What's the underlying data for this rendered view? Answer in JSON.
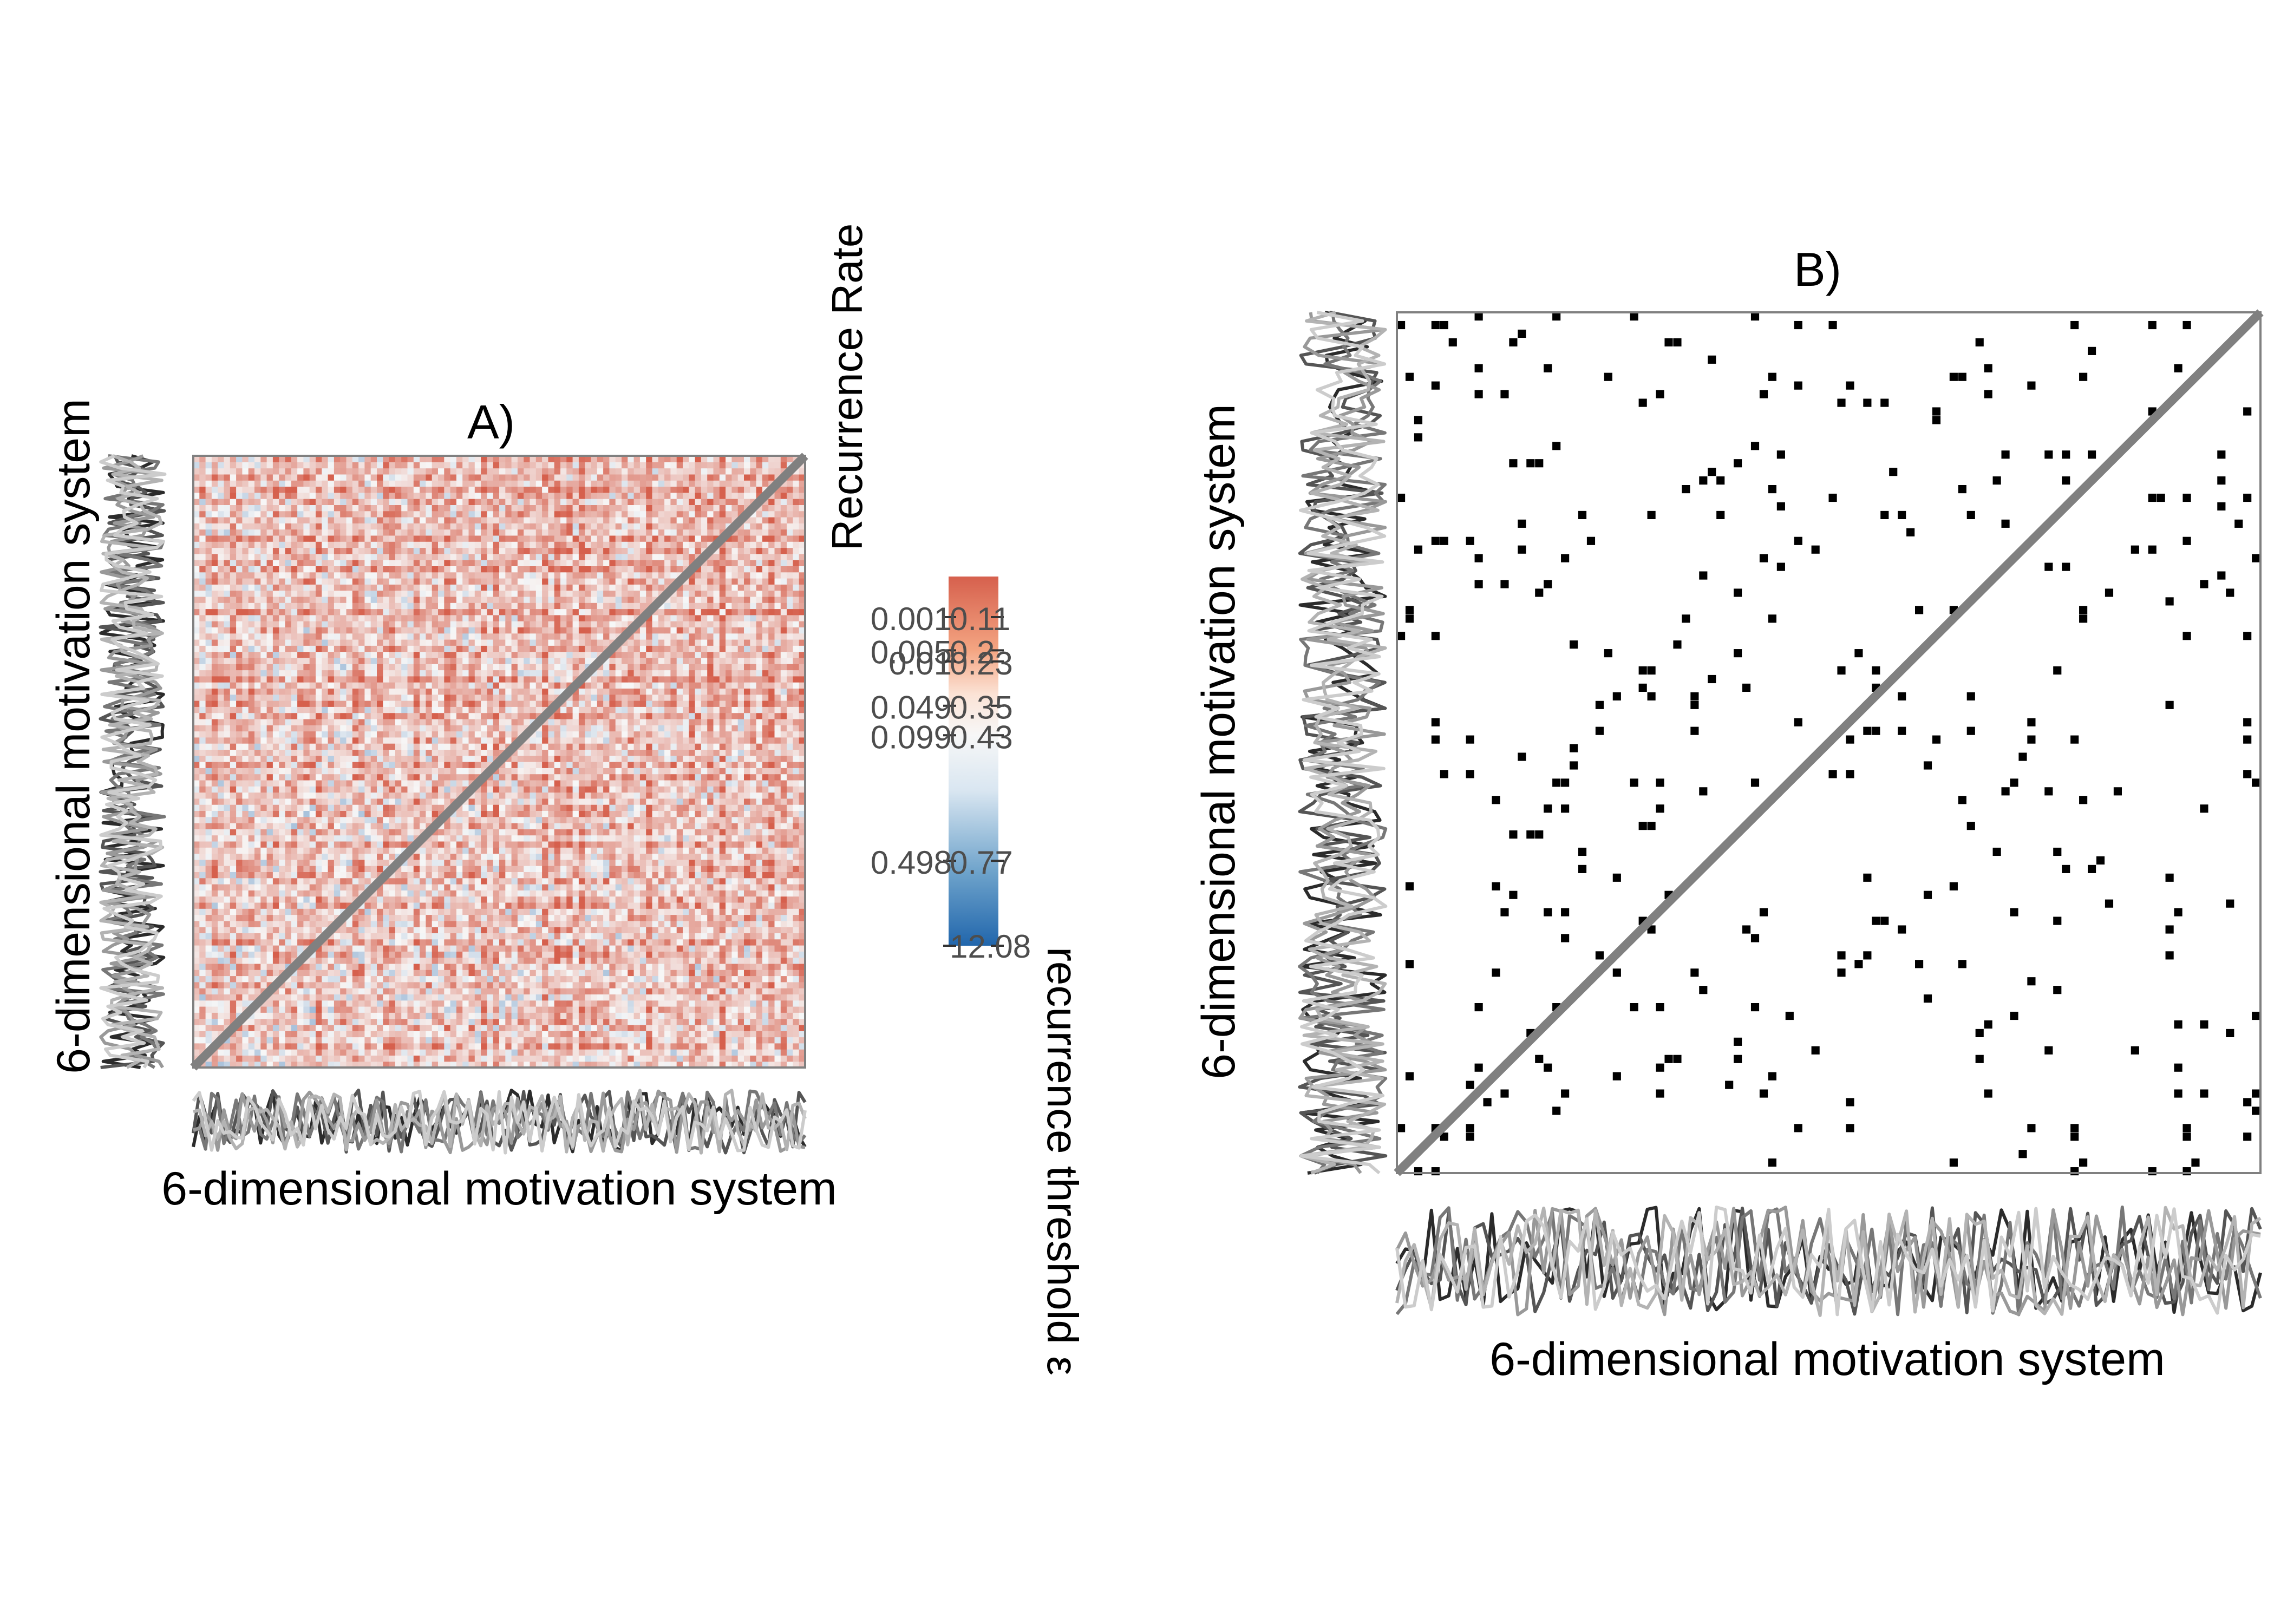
{
  "chart_data": [
    {
      "type": "heatmap",
      "panel": "A)",
      "title": "A)",
      "xlabel": "6-dimensional motivation system",
      "ylabel": "6-dimensional motivation system",
      "matrix_size": 100,
      "diagonal": "line of identity",
      "colorbar": {
        "title_top": "Recurrence Rate",
        "title_bottom": "recurrence threshold ε",
        "low_color": "#2166ac",
        "mid_color": "#f7f7f7",
        "high_color": "#d6604d",
        "ticks": [
          {
            "rate": "0.001",
            "threshold": "0.11"
          },
          {
            "rate": "0.005",
            "threshold": "0.2"
          },
          {
            "rate": "0.01",
            "threshold": "0.23"
          },
          {
            "rate": "0.049",
            "threshold": "0.35"
          },
          {
            "rate": "0.099",
            "threshold": "0.43"
          },
          {
            "rate": "0.498",
            "threshold": "0.77"
          },
          {
            "rate": "",
            "threshold": "12.08"
          }
        ],
        "tick_positions": [
          0.11,
          0.2,
          0.23,
          0.35,
          0.43,
          0.77,
          1.0
        ]
      }
    },
    {
      "type": "heatmap",
      "panel": "B)",
      "title": "B)",
      "xlabel": "6-dimensional motivation system",
      "ylabel": "6-dimensional motivation system",
      "matrix_size": 100,
      "values": "binary recurrence matrix (1 = recurrent, black)",
      "recurrent_color": "#000000",
      "diagonal": "line of identity"
    }
  ],
  "colors": {
    "frame": "#808080",
    "diagonal": "#808080",
    "series_grays": [
      "#2b2b2b",
      "#555555",
      "#777777",
      "#999999",
      "#b3b3b3",
      "#cccccc"
    ]
  }
}
